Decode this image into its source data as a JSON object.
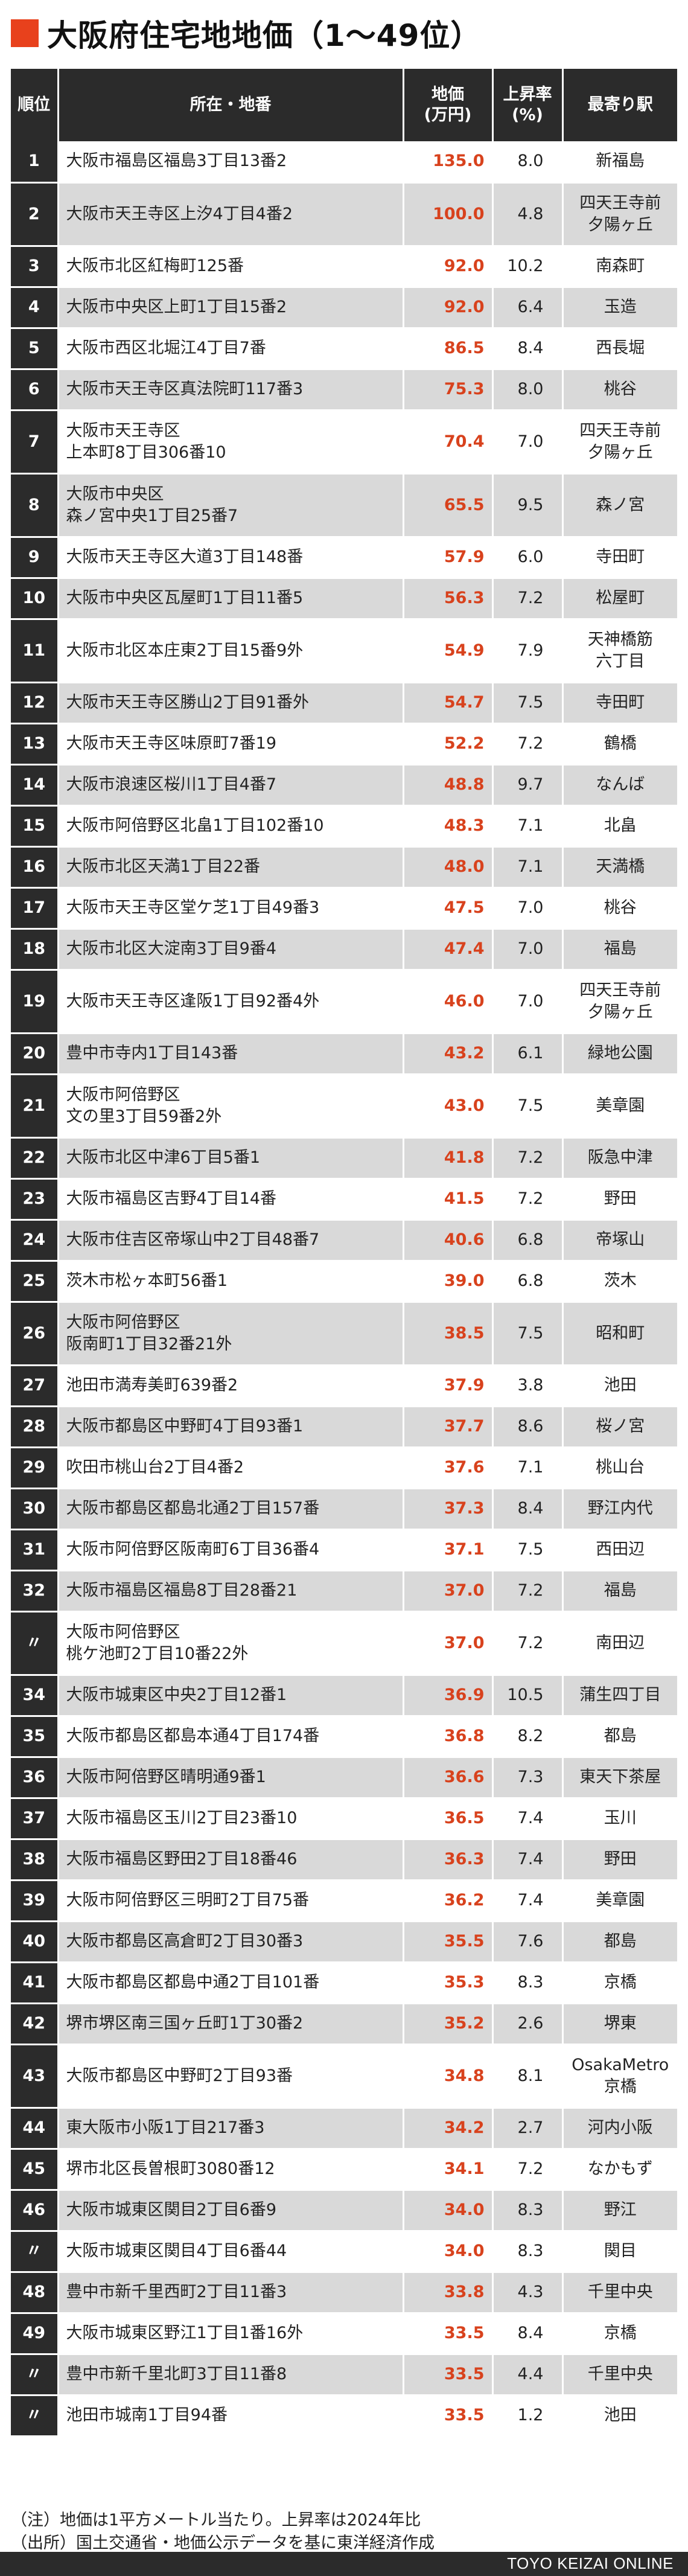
{
  "title": "大阪府住宅地地価（1〜49位）",
  "accent_color": "#e8411c",
  "header_bg": "#2b2b2b",
  "stripe_bg": "#d9d9d9",
  "headers": {
    "rank": "順位",
    "address": "所在・地番",
    "price_line1": "地価",
    "price_line2": "(万円)",
    "rate_line1": "上昇率",
    "rate_line2": "(%)",
    "station": "最寄り駅"
  },
  "rows": [
    {
      "rank": "1",
      "address": [
        "大阪市福島区福島3丁目13番2"
      ],
      "price": "135.0",
      "rate": "8.0",
      "station": [
        "新福島"
      ]
    },
    {
      "rank": "2",
      "address": [
        "大阪市天王寺区上汐4丁目4番2"
      ],
      "price": "100.0",
      "rate": "4.8",
      "station": [
        "四天王寺前",
        "夕陽ヶ丘"
      ]
    },
    {
      "rank": "3",
      "address": [
        "大阪市北区紅梅町125番"
      ],
      "price": "92.0",
      "rate": "10.2",
      "station": [
        "南森町"
      ]
    },
    {
      "rank": "4",
      "address": [
        "大阪市中央区上町1丁目15番2"
      ],
      "price": "92.0",
      "rate": "6.4",
      "station": [
        "玉造"
      ]
    },
    {
      "rank": "5",
      "address": [
        "大阪市西区北堀江4丁目7番"
      ],
      "price": "86.5",
      "rate": "8.4",
      "station": [
        "西長堀"
      ]
    },
    {
      "rank": "6",
      "address": [
        "大阪市天王寺区真法院町117番3"
      ],
      "price": "75.3",
      "rate": "8.0",
      "station": [
        "桃谷"
      ]
    },
    {
      "rank": "7",
      "address": [
        "大阪市天王寺区",
        "上本町8丁目306番10"
      ],
      "price": "70.4",
      "rate": "7.0",
      "station": [
        "四天王寺前",
        "夕陽ヶ丘"
      ]
    },
    {
      "rank": "8",
      "address": [
        "大阪市中央区",
        "森ノ宮中央1丁目25番7"
      ],
      "price": "65.5",
      "rate": "9.5",
      "station": [
        "森ノ宮"
      ]
    },
    {
      "rank": "9",
      "address": [
        "大阪市天王寺区大道3丁目148番"
      ],
      "price": "57.9",
      "rate": "6.0",
      "station": [
        "寺田町"
      ]
    },
    {
      "rank": "10",
      "address": [
        "大阪市中央区瓦屋町1丁目11番5"
      ],
      "price": "56.3",
      "rate": "7.2",
      "station": [
        "松屋町"
      ]
    },
    {
      "rank": "11",
      "address": [
        "大阪市北区本庄東2丁目15番9外"
      ],
      "price": "54.9",
      "rate": "7.9",
      "station": [
        "天神橋筋",
        "六丁目"
      ]
    },
    {
      "rank": "12",
      "address": [
        "大阪市天王寺区勝山2丁目91番外"
      ],
      "price": "54.7",
      "rate": "7.5",
      "station": [
        "寺田町"
      ]
    },
    {
      "rank": "13",
      "address": [
        "大阪市天王寺区味原町7番19"
      ],
      "price": "52.2",
      "rate": "7.2",
      "station": [
        "鶴橋"
      ]
    },
    {
      "rank": "14",
      "address": [
        "大阪市浪速区桜川1丁目4番7"
      ],
      "price": "48.8",
      "rate": "9.7",
      "station": [
        "なんば"
      ]
    },
    {
      "rank": "15",
      "address": [
        "大阪市阿倍野区北畠1丁目102番10"
      ],
      "price": "48.3",
      "rate": "7.1",
      "station": [
        "北畠"
      ]
    },
    {
      "rank": "16",
      "address": [
        "大阪市北区天満1丁目22番"
      ],
      "price": "48.0",
      "rate": "7.1",
      "station": [
        "天満橋"
      ]
    },
    {
      "rank": "17",
      "address": [
        "大阪市天王寺区堂ケ芝1丁目49番3"
      ],
      "price": "47.5",
      "rate": "7.0",
      "station": [
        "桃谷"
      ]
    },
    {
      "rank": "18",
      "address": [
        "大阪市北区大淀南3丁目9番4"
      ],
      "price": "47.4",
      "rate": "7.0",
      "station": [
        "福島"
      ]
    },
    {
      "rank": "19",
      "address": [
        "大阪市天王寺区逢阪1丁目92番4外"
      ],
      "price": "46.0",
      "rate": "7.0",
      "station": [
        "四天王寺前",
        "夕陽ヶ丘"
      ]
    },
    {
      "rank": "20",
      "address": [
        "豊中市寺内1丁目143番"
      ],
      "price": "43.2",
      "rate": "6.1",
      "station": [
        "緑地公園"
      ]
    },
    {
      "rank": "21",
      "address": [
        "大阪市阿倍野区",
        "文の里3丁目59番2外"
      ],
      "price": "43.0",
      "rate": "7.5",
      "station": [
        "美章園"
      ]
    },
    {
      "rank": "22",
      "address": [
        "大阪市北区中津6丁目5番1"
      ],
      "price": "41.8",
      "rate": "7.2",
      "station": [
        "阪急中津"
      ]
    },
    {
      "rank": "23",
      "address": [
        "大阪市福島区吉野4丁目14番"
      ],
      "price": "41.5",
      "rate": "7.2",
      "station": [
        "野田"
      ]
    },
    {
      "rank": "24",
      "address": [
        "大阪市住吉区帝塚山中2丁目48番7"
      ],
      "price": "40.6",
      "rate": "6.8",
      "station": [
        "帝塚山"
      ]
    },
    {
      "rank": "25",
      "address": [
        "茨木市松ヶ本町56番1"
      ],
      "price": "39.0",
      "rate": "6.8",
      "station": [
        "茨木"
      ]
    },
    {
      "rank": "26",
      "address": [
        "大阪市阿倍野区",
        "阪南町1丁目32番21外"
      ],
      "price": "38.5",
      "rate": "7.5",
      "station": [
        "昭和町"
      ]
    },
    {
      "rank": "27",
      "address": [
        "池田市満寿美町639番2"
      ],
      "price": "37.9",
      "rate": "3.8",
      "station": [
        "池田"
      ]
    },
    {
      "rank": "28",
      "address": [
        "大阪市都島区中野町4丁目93番1"
      ],
      "price": "37.7",
      "rate": "8.6",
      "station": [
        "桜ノ宮"
      ]
    },
    {
      "rank": "29",
      "address": [
        "吹田市桃山台2丁目4番2"
      ],
      "price": "37.6",
      "rate": "7.1",
      "station": [
        "桃山台"
      ]
    },
    {
      "rank": "30",
      "address": [
        "大阪市都島区都島北通2丁目157番"
      ],
      "price": "37.3",
      "rate": "8.4",
      "station": [
        "野江内代"
      ]
    },
    {
      "rank": "31",
      "address": [
        "大阪市阿倍野区阪南町6丁目36番4"
      ],
      "price": "37.1",
      "rate": "7.5",
      "station": [
        "西田辺"
      ]
    },
    {
      "rank": "32",
      "address": [
        "大阪市福島区福島8丁目28番21"
      ],
      "price": "37.0",
      "rate": "7.2",
      "station": [
        "福島"
      ]
    },
    {
      "rank": "〃",
      "address": [
        "大阪市阿倍野区",
        "桃ケ池町2丁目10番22外"
      ],
      "price": "37.0",
      "rate": "7.2",
      "station": [
        "南田辺"
      ]
    },
    {
      "rank": "34",
      "address": [
        "大阪市城東区中央2丁目12番1"
      ],
      "price": "36.9",
      "rate": "10.5",
      "station": [
        "蒲生四丁目"
      ]
    },
    {
      "rank": "35",
      "address": [
        "大阪市都島区都島本通4丁目174番"
      ],
      "price": "36.8",
      "rate": "8.2",
      "station": [
        "都島"
      ]
    },
    {
      "rank": "36",
      "address": [
        "大阪市阿倍野区晴明通9番1"
      ],
      "price": "36.6",
      "rate": "7.3",
      "station": [
        "東天下茶屋"
      ]
    },
    {
      "rank": "37",
      "address": [
        "大阪市福島区玉川2丁目23番10"
      ],
      "price": "36.5",
      "rate": "7.4",
      "station": [
        "玉川"
      ]
    },
    {
      "rank": "38",
      "address": [
        "大阪市福島区野田2丁目18番46"
      ],
      "price": "36.3",
      "rate": "7.4",
      "station": [
        "野田"
      ]
    },
    {
      "rank": "39",
      "address": [
        "大阪市阿倍野区三明町2丁目75番"
      ],
      "price": "36.2",
      "rate": "7.4",
      "station": [
        "美章園"
      ]
    },
    {
      "rank": "40",
      "address": [
        "大阪市都島区高倉町2丁目30番3"
      ],
      "price": "35.5",
      "rate": "7.6",
      "station": [
        "都島"
      ]
    },
    {
      "rank": "41",
      "address": [
        "大阪市都島区都島中通2丁目101番"
      ],
      "price": "35.3",
      "rate": "8.3",
      "station": [
        "京橋"
      ]
    },
    {
      "rank": "42",
      "address": [
        "堺市堺区南三国ヶ丘町1丁30番2"
      ],
      "price": "35.2",
      "rate": "2.6",
      "station": [
        "堺東"
      ]
    },
    {
      "rank": "43",
      "address": [
        "大阪市都島区中野町2丁目93番"
      ],
      "price": "34.8",
      "rate": "8.1",
      "station": [
        "OsakaMetro",
        "京橋"
      ]
    },
    {
      "rank": "44",
      "address": [
        "東大阪市小阪1丁目217番3"
      ],
      "price": "34.2",
      "rate": "2.7",
      "station": [
        "河内小阪"
      ]
    },
    {
      "rank": "45",
      "address": [
        "堺市北区長曽根町3080番12"
      ],
      "price": "34.1",
      "rate": "7.2",
      "station": [
        "なかもず"
      ]
    },
    {
      "rank": "46",
      "address": [
        "大阪市城東区関目2丁目6番9"
      ],
      "price": "34.0",
      "rate": "8.3",
      "station": [
        "野江"
      ]
    },
    {
      "rank": "〃",
      "address": [
        "大阪市城東区関目4丁目6番44"
      ],
      "price": "34.0",
      "rate": "8.3",
      "station": [
        "関目"
      ]
    },
    {
      "rank": "48",
      "address": [
        "豊中市新千里西町2丁目11番3"
      ],
      "price": "33.8",
      "rate": "4.3",
      "station": [
        "千里中央"
      ]
    },
    {
      "rank": "49",
      "address": [
        "大阪市城東区野江1丁目1番16外"
      ],
      "price": "33.5",
      "rate": "8.4",
      "station": [
        "京橋"
      ]
    },
    {
      "rank": "〃",
      "address": [
        "豊中市新千里北町3丁目11番8"
      ],
      "price": "33.5",
      "rate": "4.4",
      "station": [
        "千里中央"
      ]
    },
    {
      "rank": "〃",
      "address": [
        "池田市城南1丁目94番"
      ],
      "price": "33.5",
      "rate": "1.2",
      "station": [
        "池田"
      ]
    }
  ],
  "notes": [
    "（注）地価は1平方メートル当たり。上昇率は2024年比",
    "（出所）国土交通省・地価公示データを基に東洋経済作成"
  ],
  "credit": "TOYO KEIZAI ONLINE"
}
